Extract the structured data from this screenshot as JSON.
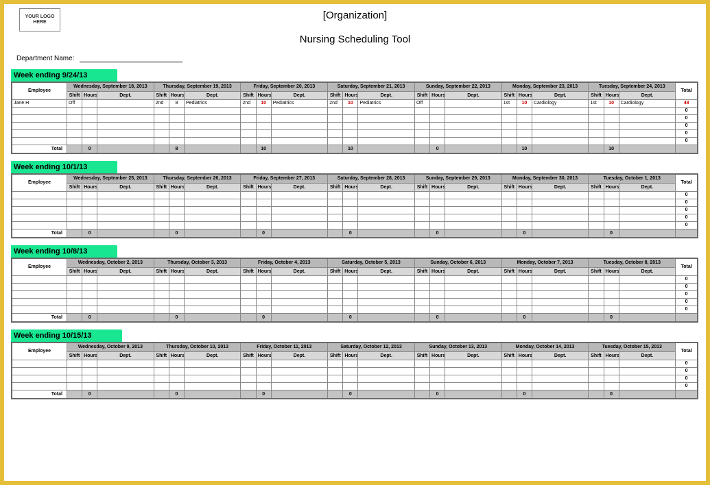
{
  "logo_placeholder": "YOUR LOGO HERE",
  "org_title": "[Organization]",
  "tool_title": "Nursing Scheduling Tool",
  "dept_label": "Department Name:",
  "headers": {
    "employee": "Employee",
    "shift": "Shift",
    "hours": "Hours",
    "dept": "Dept.",
    "total": "Total",
    "total_row": "Total"
  },
  "colors": {
    "frame": "#e5bf3a",
    "tab": "#18e691",
    "day_header": "#b8b8b8",
    "sub_header": "#d8d8d8",
    "total_row": "#c4c4c4",
    "red": "#d40000"
  },
  "weeks": [
    {
      "label": "Week ending",
      "date": "9/24/13",
      "days": [
        "Wednesday, September 18, 2013",
        "Thursday, September 19, 2013",
        "Friday, September 20, 2013",
        "Saturday, September 21, 2013",
        "Sunday, September 22, 2013",
        "Monday, September 23, 2013",
        "Tuesday, September 24, 2013"
      ],
      "rows": [
        {
          "employee": "Jane H",
          "cells": [
            {
              "shift": "Off",
              "hours": "",
              "dept": ""
            },
            {
              "shift": "2nd",
              "hours": "8",
              "dept": "Pediatrics"
            },
            {
              "shift": "2nd",
              "hours": "10",
              "dept": "Pediatrics",
              "hours_red": true
            },
            {
              "shift": "2nd",
              "hours": "10",
              "dept": "Pediatrics",
              "hours_red": true
            },
            {
              "shift": "Off",
              "hours": "",
              "dept": ""
            },
            {
              "shift": "1st",
              "hours": "10",
              "dept": "Cardiology",
              "hours_red": true
            },
            {
              "shift": "1st",
              "hours": "10",
              "dept": "Cardiology",
              "hours_red": true
            }
          ],
          "total": "48",
          "total_red": true
        }
      ],
      "empty_rows": 5,
      "totals": [
        "0",
        "8",
        "10",
        "10",
        "0",
        "10",
        "10"
      ]
    },
    {
      "label": "Week ending",
      "date": "10/1/13",
      "days": [
        "Wednesday, September 25, 2013",
        "Thursday, September 26, 2013",
        "Friday, September 27, 2013",
        "Saturday, September 28, 2013",
        "Sunday, September 29, 2013",
        "Monday, September 30, 2013",
        "Tuesday, October 1, 2013"
      ],
      "rows": [],
      "empty_rows": 5,
      "totals": [
        "0",
        "0",
        "0",
        "0",
        "0",
        "0",
        "0"
      ]
    },
    {
      "label": "Week ending",
      "date": "10/8/13",
      "days": [
        "Wednesday, October 2, 2013",
        "Thursday, October 3, 2013",
        "Friday, October 4, 2013",
        "Saturday, October 5, 2013",
        "Sunday, October 6, 2013",
        "Monday, October 7, 2013",
        "Tuesday, October 8, 2013"
      ],
      "rows": [],
      "empty_rows": 5,
      "totals": [
        "0",
        "0",
        "0",
        "0",
        "0",
        "0",
        "0"
      ]
    },
    {
      "label": "Week ending",
      "date": "10/15/13",
      "days": [
        "Wednesday, October 9, 2013",
        "Thursday, October 10, 2013",
        "Friday, October 11, 2013",
        "Saturday, October 12, 2013",
        "Sunday, October 13, 2013",
        "Monday, October 14, 2013",
        "Tuesday, October 15, 2013"
      ],
      "rows": [],
      "empty_rows": 4,
      "totals": [
        "0",
        "0",
        "0",
        "0",
        "0",
        "0",
        "0"
      ]
    }
  ]
}
